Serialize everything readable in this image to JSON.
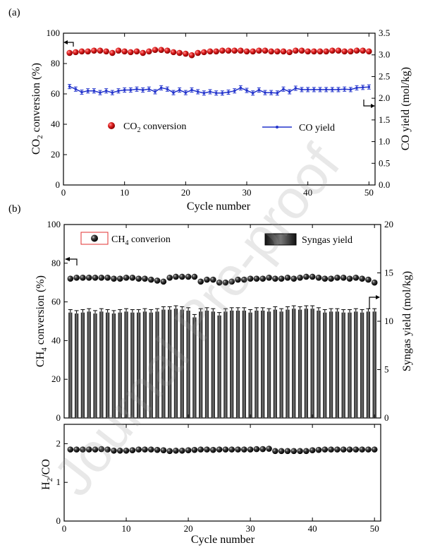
{
  "watermark": "Journal Pre-proof",
  "chart_data": [
    {
      "panel_label": "(a)",
      "type": "scatter+line",
      "xlabel": "Cycle number",
      "xlim": [
        0,
        51
      ],
      "xticks": [
        0,
        10,
        20,
        30,
        40,
        50
      ],
      "ylabel_left": "CO2 conversion (%)",
      "ylim_left": [
        0,
        100
      ],
      "yticks_left": [
        0,
        20,
        40,
        60,
        80,
        100
      ],
      "ylabel_right": "CO yield (mol/kg)",
      "ylim_right": [
        0,
        3.5
      ],
      "yticks_right": [
        "0.0",
        "0.5",
        "1.0",
        "1.5",
        "2.0",
        "2.5",
        "3.0",
        "3.5"
      ],
      "legend": {
        "co2": "CO2 conversion",
        "co": "CO yield"
      },
      "colors": {
        "co2": "#e02020",
        "co": "#2233cc"
      },
      "series": [
        {
          "name": "CO2 conversion",
          "axis": "left",
          "marker": "circle",
          "x": [
            1,
            2,
            3,
            4,
            5,
            6,
            7,
            8,
            9,
            10,
            11,
            12,
            13,
            14,
            15,
            16,
            17,
            18,
            19,
            20,
            21,
            22,
            23,
            24,
            25,
            26,
            27,
            28,
            29,
            30,
            31,
            32,
            33,
            34,
            35,
            36,
            37,
            38,
            39,
            40,
            41,
            42,
            43,
            44,
            45,
            46,
            47,
            48,
            49,
            50
          ],
          "y": [
            87,
            87.5,
            88,
            88,
            88.5,
            88.5,
            88,
            87,
            88.5,
            88,
            87.5,
            88,
            87,
            88,
            89,
            89,
            88.5,
            87.5,
            87,
            86.5,
            85.5,
            87,
            87.5,
            88,
            88,
            88.5,
            88.5,
            88.5,
            88.5,
            88,
            88,
            88.5,
            88.5,
            88,
            88,
            88,
            87.5,
            88.5,
            88.5,
            88,
            88,
            88,
            88,
            88.5,
            88.5,
            88,
            88,
            88.5,
            88.5,
            88
          ]
        },
        {
          "name": "CO yield",
          "axis": "right",
          "marker": "line-errorbar",
          "x": [
            1,
            2,
            3,
            4,
            5,
            6,
            7,
            8,
            9,
            10,
            11,
            12,
            13,
            14,
            15,
            16,
            17,
            18,
            19,
            20,
            21,
            22,
            23,
            24,
            25,
            26,
            27,
            28,
            29,
            30,
            31,
            32,
            33,
            34,
            35,
            36,
            37,
            38,
            39,
            40,
            41,
            42,
            43,
            44,
            45,
            46,
            47,
            48,
            49,
            50
          ],
          "y": [
            2.27,
            2.21,
            2.14,
            2.17,
            2.17,
            2.13,
            2.17,
            2.13,
            2.17,
            2.19,
            2.19,
            2.21,
            2.19,
            2.21,
            2.15,
            2.24,
            2.21,
            2.13,
            2.19,
            2.13,
            2.19,
            2.15,
            2.12,
            2.15,
            2.12,
            2.12,
            2.14,
            2.17,
            2.24,
            2.18,
            2.12,
            2.19,
            2.13,
            2.13,
            2.12,
            2.21,
            2.15,
            2.23,
            2.2,
            2.2,
            2.2,
            2.2,
            2.2,
            2.2,
            2.2,
            2.21,
            2.2,
            2.24,
            2.25,
            2.26
          ],
          "err": 0.05
        }
      ]
    },
    {
      "panel_label": "(b)",
      "type": "bar+scatter",
      "xlim": [
        0,
        51
      ],
      "xticks": [
        0,
        10,
        20,
        30,
        40,
        50
      ],
      "ylabel_left": "CH4 conversion (%)",
      "ylim_left": [
        0,
        100
      ],
      "yticks_left": [
        0,
        20,
        40,
        60,
        80,
        100
      ],
      "ylabel_right": "Syngas yield (mol/kg)",
      "ylim_right": [
        0,
        20
      ],
      "yticks_right": [
        0,
        5,
        10,
        15,
        20
      ],
      "legend": {
        "ch4": "CH4 converion",
        "syngas": "Syngas yield"
      },
      "series": [
        {
          "name": "CH4 converion",
          "axis": "left",
          "marker": "circle",
          "x": [
            1,
            2,
            3,
            4,
            5,
            6,
            7,
            8,
            9,
            10,
            11,
            12,
            13,
            14,
            15,
            16,
            17,
            18,
            19,
            20,
            21,
            22,
            23,
            24,
            25,
            26,
            27,
            28,
            29,
            30,
            31,
            32,
            33,
            34,
            35,
            36,
            37,
            38,
            39,
            40,
            41,
            42,
            43,
            44,
            45,
            46,
            47,
            48,
            49,
            50
          ],
          "y": [
            72,
            72.5,
            72.5,
            72.5,
            72.5,
            72.5,
            72.5,
            72,
            72,
            72.5,
            72.5,
            72,
            72,
            71.5,
            71,
            70.5,
            72.5,
            73,
            73,
            73,
            73,
            70.5,
            71.5,
            71.5,
            70,
            70,
            70.5,
            71.5,
            71.5,
            72,
            72,
            72,
            72.5,
            72,
            72,
            72.5,
            72,
            72.5,
            73,
            73,
            72.5,
            72,
            72,
            72.5,
            72.5,
            72,
            72.5,
            72,
            71.5,
            70
          ]
        },
        {
          "name": "Syngas yield",
          "axis": "right",
          "marker": "bar",
          "x": [
            1,
            2,
            3,
            4,
            5,
            6,
            7,
            8,
            9,
            10,
            11,
            12,
            13,
            14,
            15,
            16,
            17,
            18,
            19,
            20,
            21,
            22,
            23,
            24,
            25,
            26,
            27,
            28,
            29,
            30,
            31,
            32,
            33,
            34,
            35,
            36,
            37,
            38,
            39,
            40,
            41,
            42,
            43,
            44,
            45,
            46,
            47,
            48,
            49,
            50
          ],
          "y": [
            10.9,
            10.8,
            10.9,
            11.0,
            10.8,
            11.0,
            10.9,
            10.8,
            10.9,
            11.0,
            10.9,
            10.9,
            11.0,
            10.9,
            11.0,
            11.2,
            11.2,
            11.3,
            11.2,
            11.1,
            10.4,
            11.0,
            11.1,
            11.0,
            10.6,
            11.0,
            11.1,
            11.1,
            11.1,
            10.9,
            11.1,
            11.1,
            11.0,
            11.2,
            11.0,
            11.2,
            11.3,
            11.2,
            11.3,
            11.3,
            11.1,
            10.9,
            11.0,
            11.0,
            10.9,
            10.9,
            11.0,
            10.9,
            11.0,
            11.0
          ],
          "err": 0.3
        }
      ]
    },
    {
      "type": "scatter",
      "xlabel": "Cycle number",
      "xlim": [
        0,
        51
      ],
      "xticks": [
        0,
        10,
        20,
        30,
        40,
        50
      ],
      "ylabel": "H2/CO",
      "ylim": [
        0,
        2.5
      ],
      "yticks": [
        0,
        1,
        2
      ],
      "series": [
        {
          "name": "H2/CO",
          "marker": "circle",
          "x": [
            1,
            2,
            3,
            4,
            5,
            6,
            7,
            8,
            9,
            10,
            11,
            12,
            13,
            14,
            15,
            16,
            17,
            18,
            19,
            20,
            21,
            22,
            23,
            24,
            25,
            26,
            27,
            28,
            29,
            30,
            31,
            32,
            33,
            34,
            35,
            36,
            37,
            38,
            39,
            40,
            41,
            42,
            43,
            44,
            45,
            46,
            47,
            48,
            49,
            50
          ],
          "y": [
            1.85,
            1.85,
            1.85,
            1.85,
            1.85,
            1.86,
            1.85,
            1.82,
            1.82,
            1.82,
            1.83,
            1.85,
            1.85,
            1.85,
            1.84,
            1.83,
            1.81,
            1.82,
            1.82,
            1.83,
            1.84,
            1.85,
            1.85,
            1.84,
            1.85,
            1.85,
            1.85,
            1.85,
            1.85,
            1.85,
            1.86,
            1.86,
            1.87,
            1.81,
            1.81,
            1.81,
            1.81,
            1.81,
            1.81,
            1.83,
            1.84,
            1.85,
            1.85,
            1.85,
            1.85,
            1.85,
            1.85,
            1.85,
            1.85,
            1.85
          ]
        }
      ]
    }
  ]
}
